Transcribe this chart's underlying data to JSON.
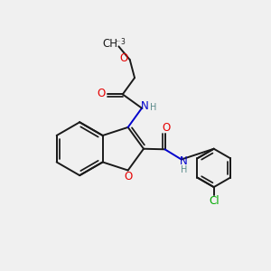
{
  "background_color": "#f0f0f0",
  "bond_color": "#1a1a1a",
  "atom_colors": {
    "O": "#e60000",
    "N": "#0000cc",
    "Cl": "#00aa00",
    "C": "#1a1a1a",
    "H": "#5a8a8a"
  },
  "figsize": [
    3.0,
    3.0
  ],
  "dpi": 100,
  "lw": 1.4,
  "fs": 8.5,
  "fs_small": 7.0
}
